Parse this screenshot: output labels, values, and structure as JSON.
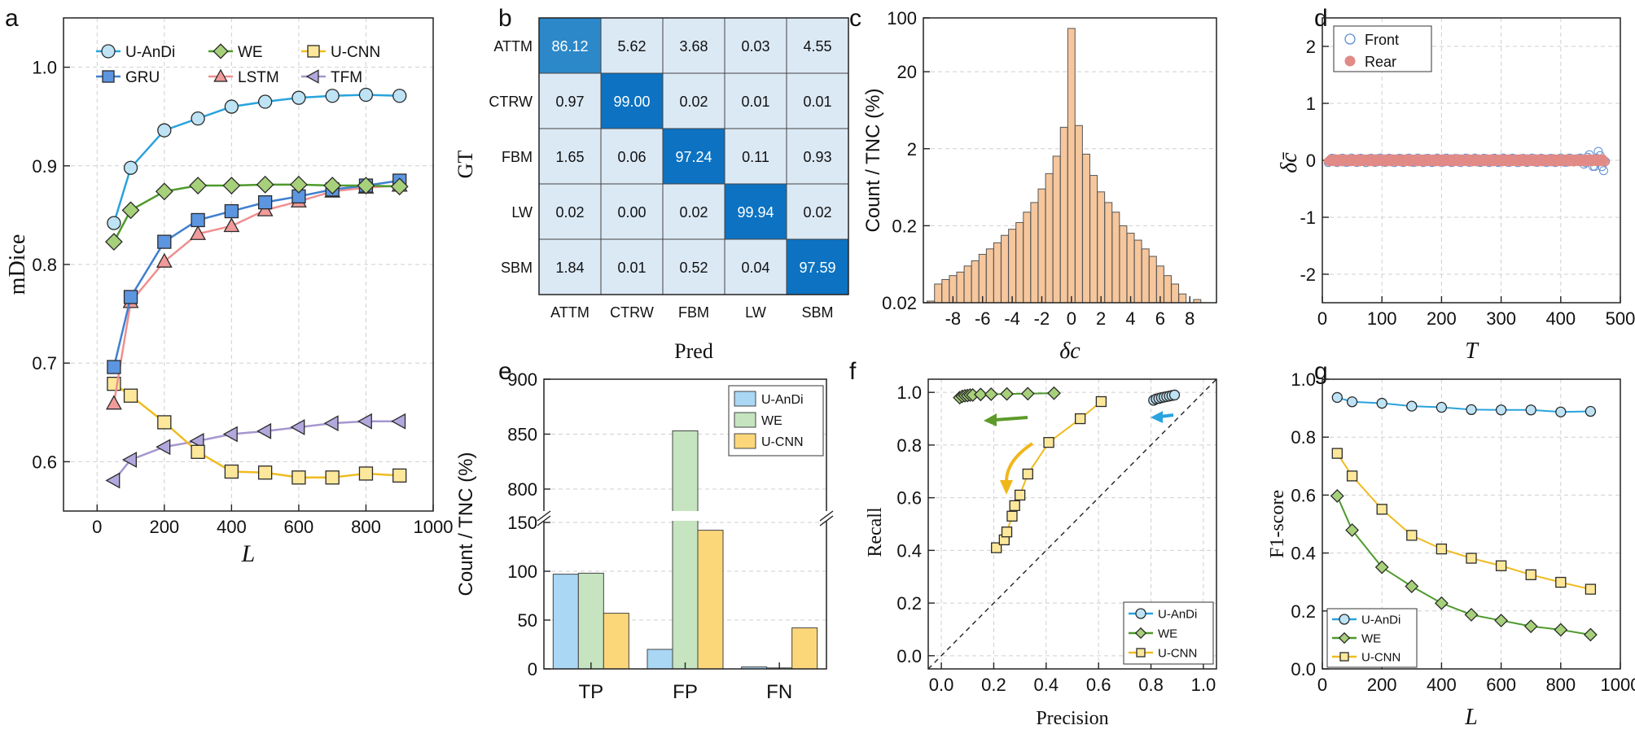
{
  "panel_labels": [
    "a",
    "b",
    "c",
    "d",
    "e",
    "f",
    "g"
  ],
  "palette": {
    "uandi": "#29a3dd",
    "uandi_fill": "#bde3f5",
    "we": "#4d9a2b",
    "we_fill": "#a7d07a",
    "ucnn": "#f0bb1f",
    "ucnn_fill": "#fde79a",
    "gru": "#3f7fd0",
    "gru_fill": "#5c95e0",
    "lstm": "#ef8f8f",
    "lstm_fill": "#f19a9a",
    "tfm": "#a597cf",
    "tfm_fill": "#b3a8dd",
    "hist": "#f6c69c",
    "front": "#5b8fd6",
    "rear": "#e18a86"
  },
  "chart_data": [
    {
      "id": "a",
      "type": "line",
      "xlabel": "L",
      "ylabel": "mDice",
      "xlim": [
        -100,
        1000
      ],
      "ylim": [
        0.55,
        1.05
      ],
      "xticks": [
        0,
        200,
        400,
        600,
        800,
        1000
      ],
      "yticks": [
        0.6,
        0.7,
        0.8,
        0.9,
        1.0
      ],
      "x": [
        50,
        100,
        200,
        300,
        400,
        500,
        600,
        700,
        800,
        900
      ],
      "series": [
        {
          "name": "U-AnDi",
          "marker": "circle",
          "values": [
            0.842,
            0.898,
            0.936,
            0.948,
            0.96,
            0.965,
            0.969,
            0.971,
            0.972,
            0.971
          ]
        },
        {
          "name": "WE",
          "marker": "diamond",
          "values": [
            0.823,
            0.855,
            0.874,
            0.88,
            0.88,
            0.881,
            0.881,
            0.88,
            0.88,
            0.879
          ]
        },
        {
          "name": "U-CNN",
          "marker": "square",
          "values": [
            0.679,
            0.667,
            0.64,
            0.61,
            0.59,
            0.589,
            0.584,
            0.584,
            0.588,
            0.586
          ]
        },
        {
          "name": "GRU",
          "marker": "square",
          "values": [
            0.696,
            0.767,
            0.823,
            0.845,
            0.854,
            0.863,
            0.869,
            0.876,
            0.88,
            0.885
          ]
        },
        {
          "name": "LSTM",
          "marker": "triangle",
          "values": [
            0.659,
            0.762,
            0.803,
            0.831,
            0.839,
            0.855,
            0.864,
            0.874,
            0.878,
            0.88
          ]
        },
        {
          "name": "TFM",
          "marker": "tri-left",
          "values": [
            0.581,
            0.602,
            0.615,
            0.621,
            0.628,
            0.631,
            0.635,
            0.639,
            0.641,
            0.641
          ]
        }
      ]
    },
    {
      "id": "b",
      "type": "heatmap",
      "xlabel": "Pred",
      "ylabel": "GT",
      "rows": [
        "ATTM",
        "CTRW",
        "FBM",
        "LW",
        "SBM"
      ],
      "cols": [
        "ATTM",
        "CTRW",
        "FBM",
        "LW",
        "SBM"
      ],
      "cells": [
        [
          "86.12",
          "5.62",
          "3.68",
          "0.03",
          "4.55"
        ],
        [
          "0.97",
          "99.00",
          "0.02",
          "0.01",
          "0.01"
        ],
        [
          "1.65",
          "0.06",
          "97.24",
          "0.11",
          "0.93"
        ],
        [
          "0.02",
          "0.00",
          "0.02",
          "99.94",
          "0.02"
        ],
        [
          "1.84",
          "0.01",
          "0.52",
          "0.04",
          "97.59"
        ]
      ]
    },
    {
      "id": "c",
      "type": "bar",
      "yscale": "log",
      "xlabel": "δc",
      "ylabel": "Count / TNC  (%)",
      "ylim": [
        0.02,
        100
      ],
      "yticks": [
        "0.02",
        "0.2",
        "2",
        "20",
        "100"
      ],
      "xtick_labels": [
        "-8",
        "-6",
        "-4",
        "-2",
        "0",
        "2",
        "4",
        "6",
        "8"
      ],
      "x": [
        -9.5,
        -9,
        -8.5,
        -8,
        -7.5,
        -7,
        -6.5,
        -6,
        -5.5,
        -5,
        -4.5,
        -4,
        -3.5,
        -3,
        -2.5,
        -2,
        -1.5,
        -1,
        -0.5,
        0,
        0.5,
        1,
        1.5,
        2,
        2.5,
        3,
        3.5,
        4,
        4.5,
        5,
        5.5,
        6,
        6.5,
        7,
        7.5,
        8,
        8.5,
        9
      ],
      "values": [
        0.021,
        0.035,
        0.04,
        0.045,
        0.05,
        0.06,
        0.07,
        0.085,
        0.1,
        0.12,
        0.15,
        0.18,
        0.22,
        0.3,
        0.4,
        0.6,
        0.95,
        1.6,
        3.8,
        73,
        4.0,
        1.7,
        0.9,
        0.55,
        0.4,
        0.3,
        0.2,
        0.16,
        0.13,
        0.1,
        0.08,
        0.06,
        0.045,
        0.035,
        0.026,
        0.018,
        0.022,
        0.02
      ]
    },
    {
      "id": "d",
      "type": "scatter",
      "xlabel": "T",
      "ylabel": "δc̄",
      "xlim": [
        0,
        500
      ],
      "ylim": [
        -2.5,
        2.5
      ],
      "xticks": [
        0,
        100,
        200,
        300,
        400,
        500
      ],
      "yticks": [
        -2,
        -1,
        0,
        1,
        2
      ],
      "series": [
        {
          "name": "Front",
          "description": "near zero, spread grows toward T=475"
        },
        {
          "name": "Rear",
          "description": "near zero across T=10..475"
        }
      ],
      "xrange_points": [
        10,
        475
      ]
    },
    {
      "id": "e",
      "type": "bar",
      "xlabel": "",
      "ylabel": "Count / TNC  (%)",
      "categories": [
        "TP",
        "FP",
        "FN"
      ],
      "ylow_ticks": [
        0,
        50,
        100,
        150
      ],
      "yhigh_ticks": [
        800,
        850,
        900
      ],
      "series": [
        {
          "name": "U-AnDi",
          "values": [
            97,
            20,
            2
          ]
        },
        {
          "name": "WE",
          "values": [
            98,
            853,
            1
          ]
        },
        {
          "name": "U-CNN",
          "values": [
            57,
            142,
            42
          ]
        }
      ]
    },
    {
      "id": "f",
      "type": "line",
      "xlabel": "Precision",
      "ylabel": "Recall",
      "xlim": [
        -0.05,
        1.05
      ],
      "ylim": [
        -0.05,
        1.05
      ],
      "xticks": [
        0.0,
        0.2,
        0.4,
        0.6,
        0.8,
        1.0
      ],
      "yticks": [
        0.0,
        0.2,
        0.4,
        0.6,
        0.8,
        1.0
      ],
      "series": [
        {
          "name": "U-AnDi",
          "x": [
            0.81,
            0.82,
            0.83,
            0.84,
            0.85,
            0.86,
            0.87,
            0.88,
            0.89
          ],
          "y": [
            0.97,
            0.975,
            0.977,
            0.98,
            0.982,
            0.984,
            0.986,
            0.988,
            0.99
          ]
        },
        {
          "name": "WE",
          "x": [
            0.07,
            0.08,
            0.09,
            0.1,
            0.11,
            0.12,
            0.15,
            0.19,
            0.25,
            0.33,
            0.43
          ],
          "y": [
            0.98,
            0.985,
            0.987,
            0.988,
            0.99,
            0.99,
            0.992,
            0.993,
            0.994,
            0.995,
            0.997
          ]
        },
        {
          "name": "U-CNN",
          "x": [
            0.21,
            0.24,
            0.25,
            0.27,
            0.28,
            0.3,
            0.33,
            0.41,
            0.53,
            0.61
          ],
          "y": [
            0.41,
            0.44,
            0.47,
            0.53,
            0.57,
            0.61,
            0.69,
            0.81,
            0.9,
            0.965
          ]
        }
      ]
    },
    {
      "id": "g",
      "type": "line",
      "xlabel": "L",
      "ylabel": "F1-score",
      "xlim": [
        0,
        1000
      ],
      "ylim": [
        0,
        1.0
      ],
      "xticks": [
        0,
        200,
        400,
        600,
        800,
        1000
      ],
      "yticks": [
        0.0,
        0.2,
        0.4,
        0.6,
        0.8,
        1.0
      ],
      "x": [
        50,
        100,
        200,
        300,
        400,
        500,
        600,
        700,
        800,
        900
      ],
      "series": [
        {
          "name": "U-AnDi",
          "marker": "circle",
          "values": [
            0.937,
            0.922,
            0.917,
            0.907,
            0.903,
            0.895,
            0.894,
            0.894,
            0.887,
            0.889
          ]
        },
        {
          "name": "WE",
          "marker": "diamond",
          "values": [
            0.597,
            0.479,
            0.351,
            0.285,
            0.227,
            0.187,
            0.167,
            0.147,
            0.135,
            0.118
          ]
        },
        {
          "name": "U-CNN",
          "marker": "square",
          "values": [
            0.744,
            0.666,
            0.551,
            0.461,
            0.414,
            0.382,
            0.356,
            0.325,
            0.299,
            0.275
          ]
        }
      ]
    }
  ]
}
